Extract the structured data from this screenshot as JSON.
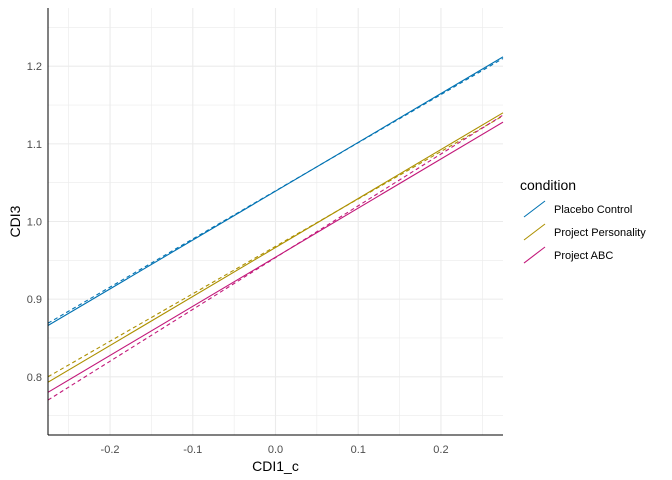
{
  "chart_data": {
    "type": "line",
    "title": "",
    "xlabel": "CDI1_c",
    "ylabel": "CDI3",
    "xlim": [
      -0.275,
      0.275
    ],
    "ylim": [
      0.725,
      1.275
    ],
    "x_ticks": [
      -0.2,
      -0.1,
      0.0,
      0.1,
      0.2
    ],
    "x_tick_labels": [
      "-0.2",
      "-0.1",
      "0.0",
      "0.1",
      "0.2"
    ],
    "y_ticks": [
      0.8,
      0.9,
      1.0,
      1.1,
      1.2
    ],
    "y_tick_labels": [
      "0.8",
      "0.9",
      "1.0",
      "1.1",
      "1.2"
    ],
    "grid": true,
    "legend": {
      "title": "condition",
      "placement": "right"
    },
    "series": [
      {
        "name": "Placebo Control",
        "color": "#0072B2",
        "x": [
          -0.275,
          0.275
        ],
        "y": [
          0.866,
          1.212
        ],
        "style": "solid"
      },
      {
        "name": "Project Personality",
        "color": "#AD9000",
        "x": [
          -0.275,
          0.275
        ],
        "y": [
          0.793,
          1.14
        ],
        "style": "solid"
      },
      {
        "name": "Project ABC",
        "color": "#C2187A",
        "x": [
          -0.275,
          0.275
        ],
        "y": [
          0.78,
          1.128
        ],
        "style": "solid"
      }
    ],
    "reference_lines": [
      {
        "color": "#0072B2",
        "x": [
          -0.275,
          0.275
        ],
        "y": [
          0.869,
          1.21
        ],
        "style": "dashed"
      },
      {
        "color": "#AD9000",
        "x": [
          -0.275,
          0.275
        ],
        "y": [
          0.8,
          1.136
        ],
        "style": "dashed"
      },
      {
        "color": "#C2187A",
        "x": [
          -0.275,
          0.275
        ],
        "y": [
          0.77,
          1.137
        ],
        "style": "dashed"
      }
    ]
  }
}
